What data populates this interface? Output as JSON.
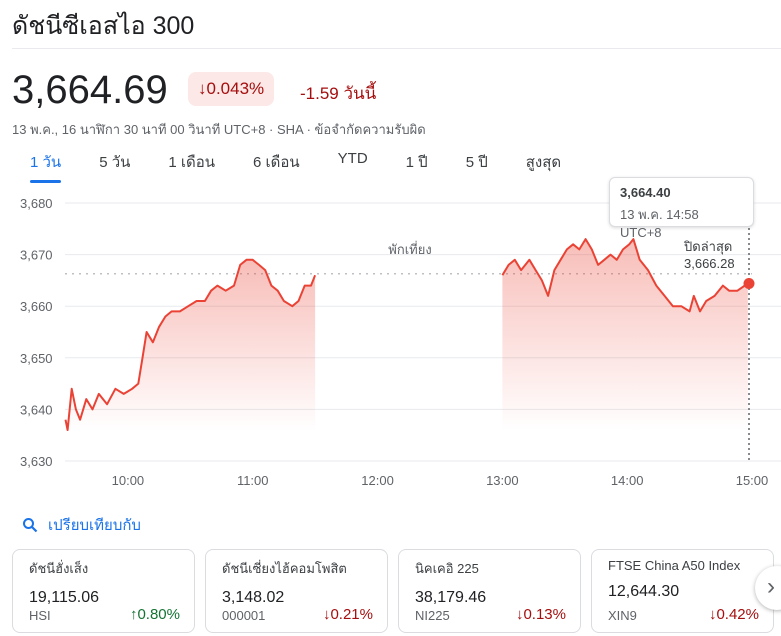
{
  "title": "ดัชนีซีเอสไอ 300",
  "quote": {
    "price": "3,664.69",
    "change_pct": "↓0.043%",
    "change_abs": "-1.59 วันนี้",
    "meta": "13 พ.ค., 16 นาฬิกา 30 นาที 00 วินาที UTC+8 · SHA · ข้อจำกัดความรับผิด"
  },
  "tabs": [
    {
      "label": "1 วัน",
      "active": true
    },
    {
      "label": "5 วัน"
    },
    {
      "label": "1 เดือน"
    },
    {
      "label": "6 เดือน"
    },
    {
      "label": "YTD"
    },
    {
      "label": "1 ปี"
    },
    {
      "label": "5 ปี"
    },
    {
      "label": "สูงสุด"
    }
  ],
  "tooltip": {
    "value": "3,664.40",
    "time": "13 พ.ค. 14:58 UTC+8"
  },
  "colors": {
    "line": "#ea4335",
    "accent": "#1a73e8",
    "down": "#a50e0e",
    "up": "#137333"
  },
  "chart_data": {
    "type": "line",
    "ylim": [
      3630,
      3680
    ],
    "yticks": [
      "3,630",
      "3,640",
      "3,650",
      "3,660",
      "3,670",
      "3,680"
    ],
    "xticks": [
      "10:00",
      "11:00",
      "12:00",
      "13:00",
      "14:00",
      "15:00"
    ],
    "xrange": [
      "09:30",
      "15:00"
    ],
    "break_label": "พักเที่ยง",
    "prev_close_label": "ปิดล่าสุด",
    "prev_close_value": "3,666.28",
    "prev_close": 3666.28,
    "grid": true,
    "sessions": [
      [
        [
          "09:30",
          3638
        ],
        [
          "09:31",
          3636
        ],
        [
          "09:33",
          3644
        ],
        [
          "09:35",
          3640
        ],
        [
          "09:37",
          3638
        ],
        [
          "09:40",
          3642
        ],
        [
          "09:43",
          3640
        ],
        [
          "09:46",
          3643
        ],
        [
          "09:50",
          3641
        ],
        [
          "09:54",
          3644
        ],
        [
          "09:58",
          3643
        ],
        [
          "10:02",
          3644
        ],
        [
          "10:05",
          3645
        ],
        [
          "10:07",
          3650
        ],
        [
          "10:09",
          3655
        ],
        [
          "10:12",
          3653
        ],
        [
          "10:15",
          3656
        ],
        [
          "10:18",
          3658
        ],
        [
          "10:21",
          3659
        ],
        [
          "10:25",
          3659
        ],
        [
          "10:29",
          3660
        ],
        [
          "10:33",
          3661
        ],
        [
          "10:37",
          3661
        ],
        [
          "10:40",
          3663
        ],
        [
          "10:43",
          3664
        ],
        [
          "10:47",
          3663
        ],
        [
          "10:51",
          3664
        ],
        [
          "10:54",
          3668
        ],
        [
          "10:57",
          3669
        ],
        [
          "11:00",
          3669
        ],
        [
          "11:03",
          3668
        ],
        [
          "11:06",
          3667
        ],
        [
          "11:09",
          3664
        ],
        [
          "11:12",
          3663
        ],
        [
          "11:15",
          3661
        ],
        [
          "11:19",
          3660
        ],
        [
          "11:22",
          3661
        ],
        [
          "11:25",
          3664
        ],
        [
          "11:28",
          3664
        ],
        [
          "11:30",
          3666
        ]
      ],
      [
        [
          "13:00",
          3666
        ],
        [
          "13:03",
          3668
        ],
        [
          "13:06",
          3669
        ],
        [
          "13:09",
          3667
        ],
        [
          "13:13",
          3669
        ],
        [
          "13:16",
          3667
        ],
        [
          "13:19",
          3665
        ],
        [
          "13:22",
          3662
        ],
        [
          "13:25",
          3667
        ],
        [
          "13:28",
          3669
        ],
        [
          "13:31",
          3671
        ],
        [
          "13:34",
          3672
        ],
        [
          "13:37",
          3671
        ],
        [
          "13:40",
          3673
        ],
        [
          "13:43",
          3671
        ],
        [
          "13:46",
          3668
        ],
        [
          "13:49",
          3669
        ],
        [
          "13:52",
          3670
        ],
        [
          "13:55",
          3669
        ],
        [
          "13:58",
          3671
        ],
        [
          "14:01",
          3672
        ],
        [
          "14:03",
          3673
        ],
        [
          "14:06",
          3669
        ],
        [
          "14:10",
          3667
        ],
        [
          "14:14",
          3664
        ],
        [
          "14:18",
          3662
        ],
        [
          "14:22",
          3660
        ],
        [
          "14:26",
          3660
        ],
        [
          "14:30",
          3659
        ],
        [
          "14:32",
          3662
        ],
        [
          "14:35",
          3659
        ],
        [
          "14:38",
          3661
        ],
        [
          "14:42",
          3662
        ],
        [
          "14:46",
          3664
        ],
        [
          "14:49",
          3663
        ],
        [
          "14:53",
          3663
        ],
        [
          "14:58",
          3664.4
        ]
      ]
    ]
  },
  "compare": {
    "label": "เปรียบเทียบกับ"
  },
  "cards": [
    {
      "name": "ดัชนีฮั่งเส็ง",
      "price": "19,115.06",
      "symbol": "HSI",
      "change": "↑0.80%",
      "dir": "up"
    },
    {
      "name": "ดัชนีเซี่ยงไฮ้คอมโพสิต",
      "price": "3,148.02",
      "symbol": "000001",
      "change": "↓0.21%",
      "dir": "down"
    },
    {
      "name": "นิคเคอิ 225",
      "price": "38,179.46",
      "symbol": "NI225",
      "change": "↓0.13%",
      "dir": "down"
    },
    {
      "name": "FTSE China A50 Index",
      "price": "12,644.30",
      "symbol": "XIN9",
      "change": "↓0.42%",
      "dir": "down"
    }
  ]
}
